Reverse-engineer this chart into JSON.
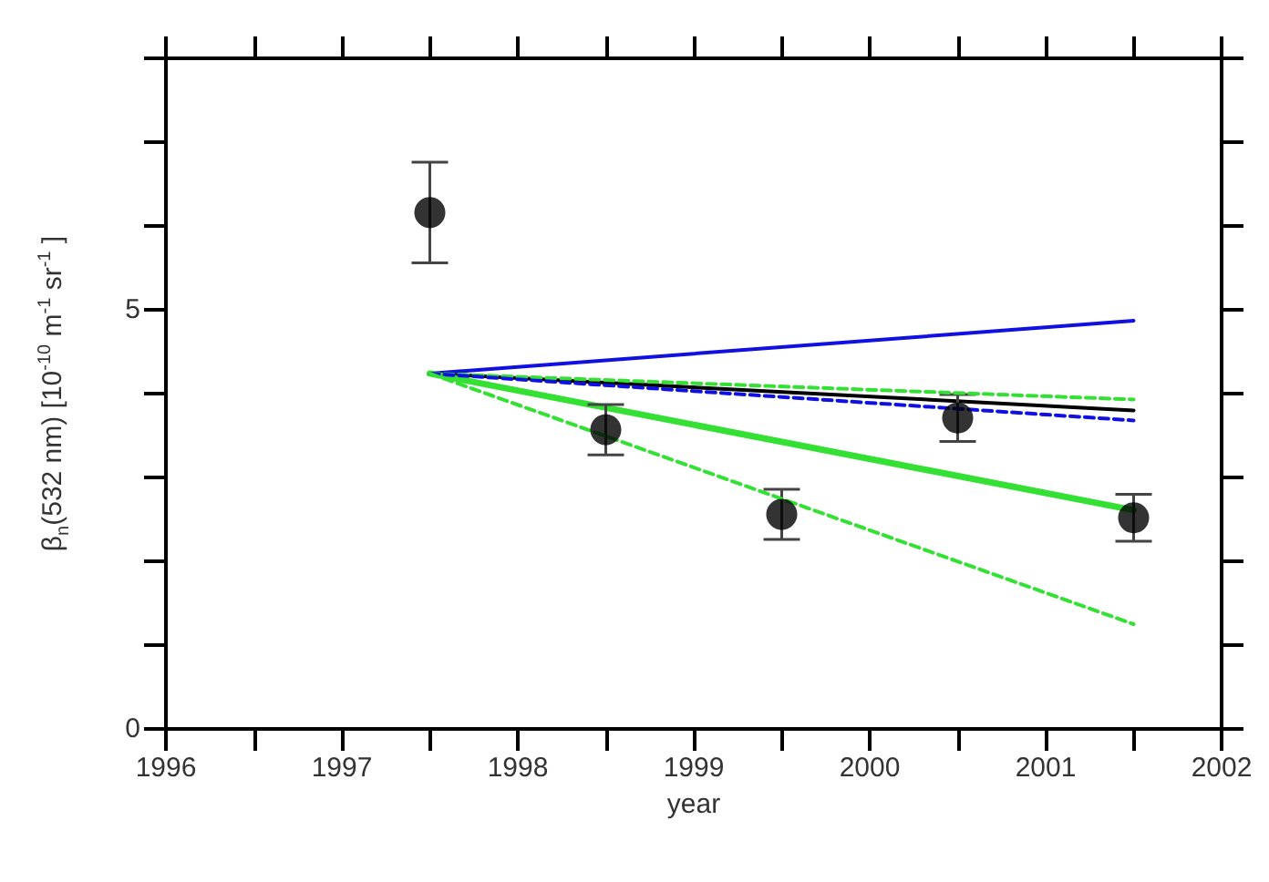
{
  "chart_data": {
    "type": "scatter",
    "xlabel": "year",
    "ylabel": "β$_{n}$(532 nm) [10$^{-10}$ m$^{-1}$ sr$^{-1}$ ]",
    "xlim": [
      1996,
      2002
    ],
    "ylim": [
      0,
      8
    ],
    "xticks": [
      1996,
      {
        "value": 1996.5,
        "label": null
      },
      1997,
      {
        "value": 1997.5,
        "label": null
      },
      1998,
      {
        "value": 1998.5,
        "label": null
      },
      1999,
      {
        "value": 1999.5,
        "label": null
      },
      2000,
      {
        "value": 2000.5,
        "label": null
      },
      2001,
      {
        "value": 2001.5,
        "label": null
      },
      2002
    ],
    "yticks": [
      0,
      {
        "value": 1,
        "label": null
      },
      {
        "value": 2,
        "label": null
      },
      {
        "value": 3,
        "label": null
      },
      {
        "value": 4,
        "label": null
      },
      5,
      {
        "value": 6,
        "label": null
      },
      {
        "value": 7,
        "label": null
      },
      {
        "value": 8,
        "label": null
      }
    ],
    "grid": false,
    "series": [
      {
        "color": "#000000",
        "marker": "circle",
        "x": [
          1997.5,
          1998.5,
          1999.5,
          2000.5,
          2001.5
        ],
        "values": [
          6.16,
          3.57,
          2.56,
          3.71,
          2.52
        ],
        "errors": [
          0.6,
          0.3,
          0.3,
          0.28,
          0.28
        ]
      },
      {
        "type": "line",
        "color": "#1010e0",
        "line_style": "solid",
        "marker": "none",
        "x": [
          1997.5,
          2001.5
        ],
        "values": [
          4.24,
          4.87
        ]
      },
      {
        "type": "line",
        "color": "#33e033",
        "line_style": "dashed",
        "marker": "none",
        "x": [
          1997.5,
          2001.5
        ],
        "values": [
          4.24,
          3.93
        ]
      },
      {
        "type": "line",
        "color": "#000000",
        "line_style": "solid",
        "marker": "none",
        "x": [
          1997.5,
          2001.5
        ],
        "values": [
          4.24,
          3.8
        ]
      },
      {
        "type": "line",
        "color": "#1010e0",
        "line_style": "dashed",
        "marker": "none",
        "x": [
          1997.5,
          2001.5
        ],
        "values": [
          4.24,
          3.68
        ]
      },
      {
        "type": "line",
        "color": "#33e033",
        "line_style": "solid",
        "marker": "none",
        "x": [
          1997.5,
          2001.5
        ],
        "values": [
          4.24,
          2.61
        ]
      },
      {
        "type": "line",
        "color": "#33e033",
        "line_style": "dashed",
        "marker": "none",
        "x": [
          1997.5,
          2001.5
        ],
        "values": [
          4.24,
          1.25
        ]
      }
    ]
  }
}
